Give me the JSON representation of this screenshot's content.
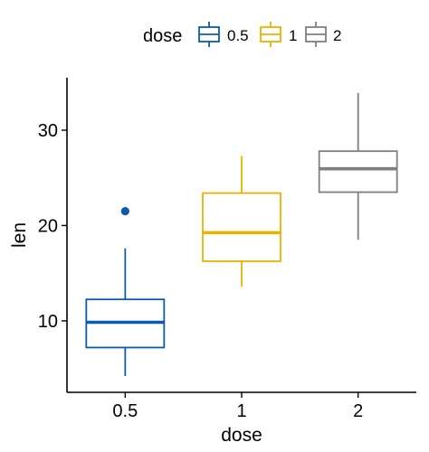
{
  "chart_data": {
    "type": "box",
    "xlabel": "dose",
    "ylabel": "len",
    "categories": [
      "0.5",
      "1",
      "2"
    ],
    "ylim": [
      2.5,
      35.5
    ],
    "yticks": [
      10,
      20,
      30
    ],
    "grid": false,
    "legend": {
      "title": "dose",
      "position": "top",
      "entries": [
        "0.5",
        "1",
        "2"
      ]
    },
    "boxes": [
      {
        "category": "0.5",
        "whisker_low": 4.2,
        "q1": 7.2,
        "median": 9.85,
        "q3": 12.25,
        "whisker_high": 17.6,
        "outliers": [
          21.5
        ],
        "color": "#0C5BB0"
      },
      {
        "category": "1",
        "whisker_low": 13.6,
        "q1": 16.25,
        "median": 19.25,
        "q3": 23.4,
        "whisker_high": 27.3,
        "outliers": [],
        "color": "#EBB300"
      },
      {
        "category": "2",
        "whisker_low": 18.5,
        "q1": 23.5,
        "median": 25.95,
        "q3": 27.8,
        "whisker_high": 33.9,
        "outliers": [],
        "color": "#7F7F7F"
      }
    ]
  }
}
